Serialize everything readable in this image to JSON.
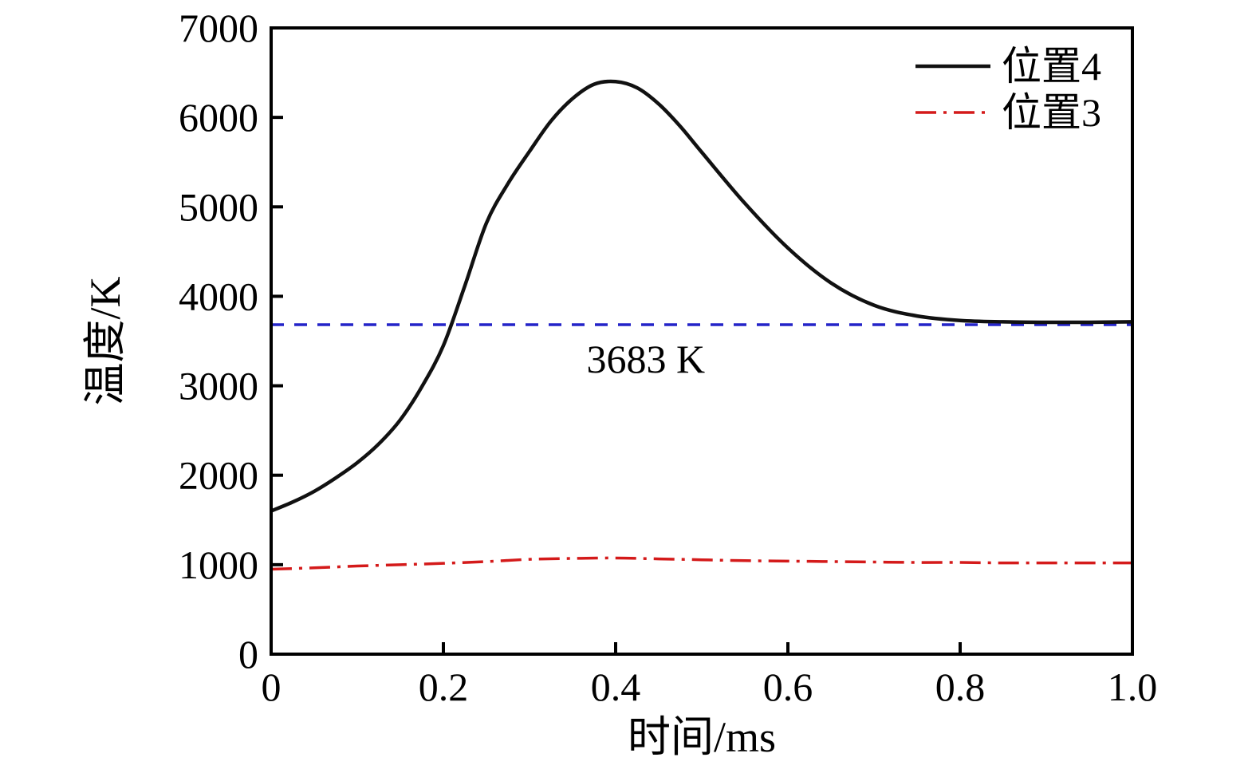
{
  "chart_data": {
    "type": "line",
    "title": "",
    "xlabel": "时间/ms",
    "ylabel": "温度/K",
    "xlim": [
      0,
      1.0
    ],
    "ylim": [
      0,
      7000
    ],
    "xticks": [
      0,
      0.2,
      0.4,
      0.6,
      0.8,
      1.0
    ],
    "xtick_labels": [
      "0",
      "0.2",
      "0.4",
      "0.6",
      "0.8",
      "1.0"
    ],
    "yticks": [
      0,
      1000,
      2000,
      3000,
      4000,
      5000,
      6000,
      7000
    ],
    "ytick_labels": [
      "0",
      "1000",
      "2000",
      "3000",
      "4000",
      "5000",
      "6000",
      "7000"
    ],
    "grid": false,
    "legend_position": "top-right",
    "series": [
      {
        "name": "位置4",
        "color": "#111111",
        "style": "solid",
        "x": [
          0,
          0.025,
          0.05,
          0.075,
          0.1,
          0.125,
          0.15,
          0.175,
          0.2,
          0.225,
          0.25,
          0.275,
          0.3,
          0.325,
          0.35,
          0.375,
          0.4,
          0.425,
          0.45,
          0.475,
          0.5,
          0.55,
          0.6,
          0.65,
          0.7,
          0.75,
          0.8,
          0.85,
          0.9,
          0.95,
          1.0
        ],
        "values": [
          1600,
          1700,
          1820,
          1970,
          2140,
          2350,
          2620,
          2990,
          3450,
          4120,
          4820,
          5260,
          5620,
          5960,
          6210,
          6370,
          6400,
          6330,
          6150,
          5900,
          5610,
          5040,
          4540,
          4150,
          3900,
          3780,
          3730,
          3715,
          3710,
          3710,
          3715
        ]
      },
      {
        "name": "位置3",
        "color": "#d41a1a",
        "style": "dashdot",
        "x": [
          0,
          0.05,
          0.1,
          0.15,
          0.2,
          0.25,
          0.3,
          0.35,
          0.4,
          0.45,
          0.5,
          0.55,
          0.6,
          0.65,
          0.7,
          0.75,
          0.8,
          0.85,
          0.9,
          0.95,
          1.0
        ],
        "values": [
          950,
          965,
          985,
          1000,
          1015,
          1035,
          1060,
          1070,
          1075,
          1065,
          1055,
          1045,
          1040,
          1035,
          1030,
          1025,
          1025,
          1020,
          1020,
          1020,
          1020
        ]
      }
    ],
    "reference_line": {
      "value": 3683,
      "color": "#2424c8",
      "style": "dashed"
    },
    "annotation": {
      "text": "3683 K",
      "x": 0.435,
      "y": 3150
    },
    "colors": {
      "axis": "#000000",
      "background": "#ffffff"
    }
  }
}
